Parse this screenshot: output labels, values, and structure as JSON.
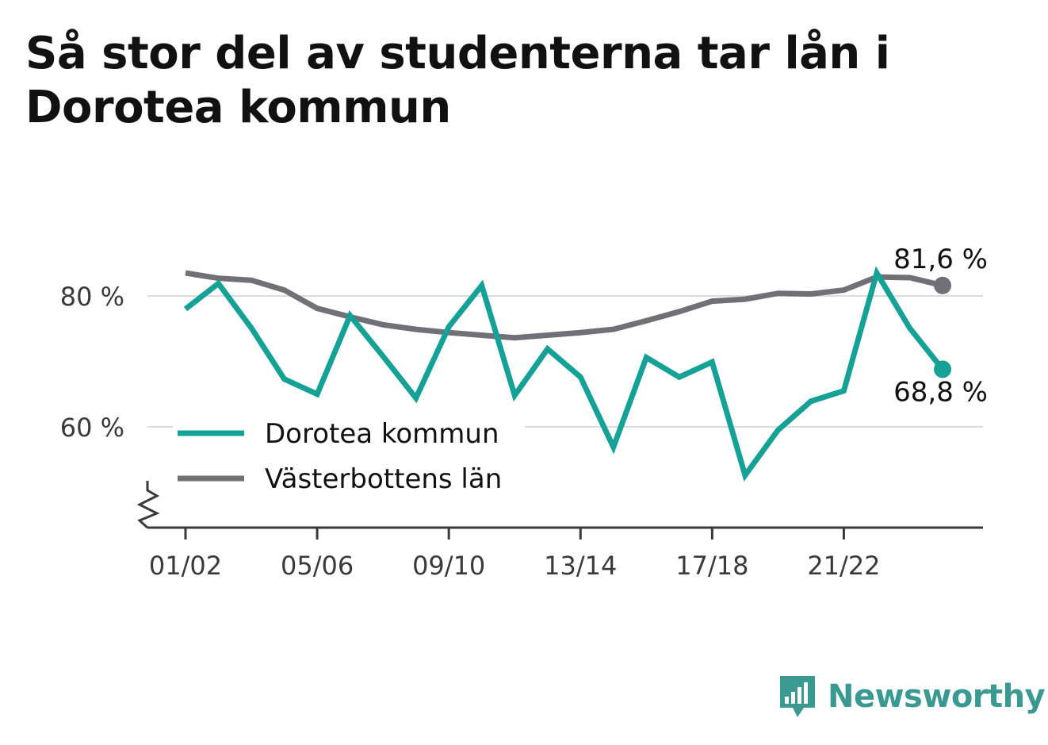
{
  "title": "Så stor del av studenterna tar lån i Dorotea kommun",
  "brand": {
    "name": "Newsworthy",
    "icon": "newsworthy-logo-icon",
    "color": "#3a9a92"
  },
  "chart_data": {
    "type": "line",
    "title": "Så stor del av studenterna tar lån i Dorotea kommun",
    "xlabel": "",
    "ylabel": "",
    "ylim": [
      44.5,
      87
    ],
    "grid": true,
    "legend_position": "bottom-left",
    "x": [
      "01/02",
      "02/03",
      "03/04",
      "04/05",
      "05/06",
      "06/07",
      "07/08",
      "08/09",
      "09/10",
      "10/11",
      "11/12",
      "12/13",
      "13/14",
      "14/15",
      "15/16",
      "16/17",
      "17/18",
      "18/19",
      "19/20",
      "20/21",
      "21/22",
      "22/23",
      "23/24",
      "24/25"
    ],
    "x_tick_labels": [
      "01/02",
      "05/06",
      "09/10",
      "13/14",
      "17/18",
      "21/22"
    ],
    "y_ticks": [
      60,
      80
    ],
    "y_tick_labels": [
      "60 %",
      "80 %"
    ],
    "axis_break": true,
    "series": [
      {
        "name": "Dorotea kommun",
        "color": "#16a196",
        "end_label": "68,8 %",
        "values": [
          78.0,
          81.9,
          75.1,
          67.3,
          65.0,
          77.0,
          70.8,
          64.4,
          75.3,
          81.6,
          64.8,
          71.9,
          67.6,
          56.9,
          70.6,
          67.6,
          69.9,
          52.6,
          59.5,
          63.9,
          65.5,
          83.5,
          75.1,
          68.8
        ]
      },
      {
        "name": "Västerbottens län",
        "color": "#727077",
        "end_label": "81,6 %",
        "values": [
          83.5,
          82.7,
          82.4,
          80.9,
          78.1,
          76.8,
          75.6,
          74.9,
          74.4,
          74.0,
          73.6,
          74.0,
          74.4,
          74.9,
          76.2,
          77.6,
          79.2,
          79.5,
          80.4,
          80.3,
          80.9,
          82.9,
          82.8,
          81.6
        ]
      }
    ]
  }
}
